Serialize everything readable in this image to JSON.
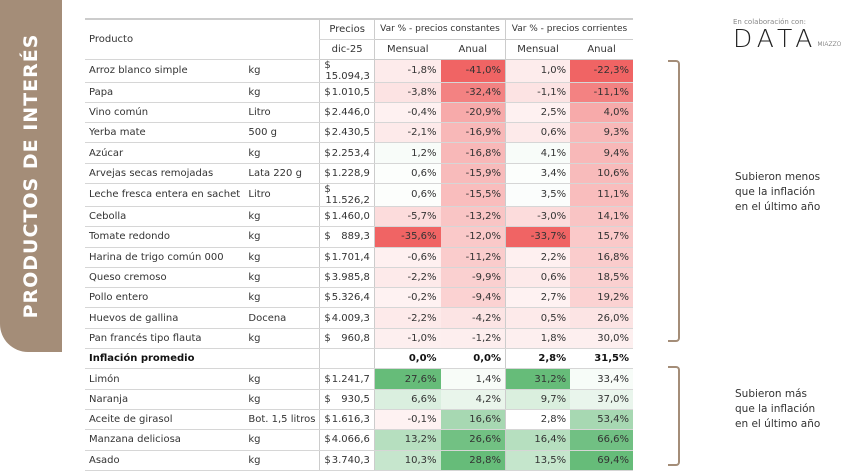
{
  "side_title": "PRODUCTOS DE INTERÉS",
  "logo": {
    "caption": "En colaboración con:",
    "name": "DATA",
    "sub": "MIAZZO"
  },
  "notes": {
    "top": [
      "Subieron menos",
      "que la inflación",
      "en el último año"
    ],
    "bottom": [
      "Subieron más",
      "que la inflación",
      "en el último año"
    ]
  },
  "header": {
    "producto": "Producto",
    "precios": "Precios",
    "fecha": "dic-25",
    "constantes": "Var % - precios constantes",
    "corrientes": "Var % - precios corrientes",
    "mensual": "Mensual",
    "anual": "Anual"
  },
  "colors": {
    "red": "#f06464",
    "green": "#55b46a",
    "tab": "#a48d78"
  },
  "inflation": {
    "label": "Inflación promedio",
    "values": [
      0.0,
      0.0,
      2.8,
      31.5
    ],
    "display": [
      "0,0%",
      "0,0%",
      "2,8%",
      "31,5%"
    ]
  },
  "rows": [
    {
      "name": "Arroz blanco simple",
      "unit": "kg",
      "price": "15.094,3",
      "v": [
        "-1,8%",
        "-41,0%",
        "1,0%",
        "-22,3%"
      ]
    },
    {
      "name": "Papa",
      "unit": "kg",
      "price": "1.010,5",
      "v": [
        "-3,8%",
        "-32,4%",
        "-1,1%",
        "-11,1%"
      ]
    },
    {
      "name": "Vino común",
      "unit": "Litro",
      "price": "2.446,0",
      "v": [
        "-0,4%",
        "-20,9%",
        "2,5%",
        "4,0%"
      ]
    },
    {
      "name": "Yerba mate",
      "unit": "500 g",
      "price": "2.430,5",
      "v": [
        "-2,1%",
        "-16,9%",
        "0,6%",
        "9,3%"
      ]
    },
    {
      "name": "Azúcar",
      "unit": "kg",
      "price": "2.253,4",
      "v": [
        "1,2%",
        "-16,8%",
        "4,1%",
        "9,4%"
      ]
    },
    {
      "name": "Arvejas secas remojadas",
      "unit": "Lata 220 g",
      "price": "1.228,9",
      "v": [
        "0,6%",
        "-15,9%",
        "3,4%",
        "10,6%"
      ]
    },
    {
      "name": "Leche fresca entera en sachet",
      "unit": "Litro",
      "price": "11.526,2",
      "v": [
        "0,6%",
        "-15,5%",
        "3,5%",
        "11,1%"
      ]
    },
    {
      "name": "Cebolla",
      "unit": "kg",
      "price": "1.460,0",
      "v": [
        "-5,7%",
        "-13,2%",
        "-3,0%",
        "14,1%"
      ]
    },
    {
      "name": "Tomate redondo",
      "unit": "kg",
      "price": "889,3",
      "v": [
        "-35,6%",
        "-12,0%",
        "-33,7%",
        "15,7%"
      ]
    },
    {
      "name": "Harina de trigo común 000",
      "unit": "kg",
      "price": "1.701,4",
      "v": [
        "-0,6%",
        "-11,2%",
        "2,2%",
        "16,8%"
      ]
    },
    {
      "name": "Queso cremoso",
      "unit": "kg",
      "price": "3.985,8",
      "v": [
        "-2,2%",
        "-9,9%",
        "0,6%",
        "18,5%"
      ]
    },
    {
      "name": "Pollo entero",
      "unit": "kg",
      "price": "5.326,4",
      "v": [
        "-0,2%",
        "-9,4%",
        "2,7%",
        "19,2%"
      ]
    },
    {
      "name": "Huevos de gallina",
      "unit": "Docena",
      "price": "4.009,3",
      "v": [
        "-2,2%",
        "-4,2%",
        "0,5%",
        "26,0%"
      ]
    },
    {
      "name": "Pan francés tipo flauta",
      "unit": "kg",
      "price": "960,8",
      "v": [
        "-1,0%",
        "-1,2%",
        "1,8%",
        "30,0%"
      ]
    },
    {
      "inflation": true
    },
    {
      "name": "Limón",
      "unit": "kg",
      "price": "1.241,7",
      "v": [
        "27,6%",
        "1,4%",
        "31,2%",
        "33,4%"
      ]
    },
    {
      "name": "Naranja",
      "unit": "kg",
      "price": "930,5",
      "v": [
        "6,6%",
        "4,2%",
        "9,7%",
        "37,0%"
      ]
    },
    {
      "name": "Aceite de girasol",
      "unit": "Bot. 1,5 litros",
      "price": "1.616,3",
      "v": [
        "-0,1%",
        "16,6%",
        "2,8%",
        "53,4%"
      ]
    },
    {
      "name": "Manzana deliciosa",
      "unit": "kg",
      "price": "4.066,6",
      "v": [
        "13,2%",
        "26,6%",
        "16,4%",
        "66,6%"
      ]
    },
    {
      "name": "Asado",
      "unit": "kg",
      "price": "3.740,3",
      "v": [
        "10,3%",
        "28,8%",
        "13,5%",
        "69,4%"
      ]
    }
  ],
  "currency": "$"
}
